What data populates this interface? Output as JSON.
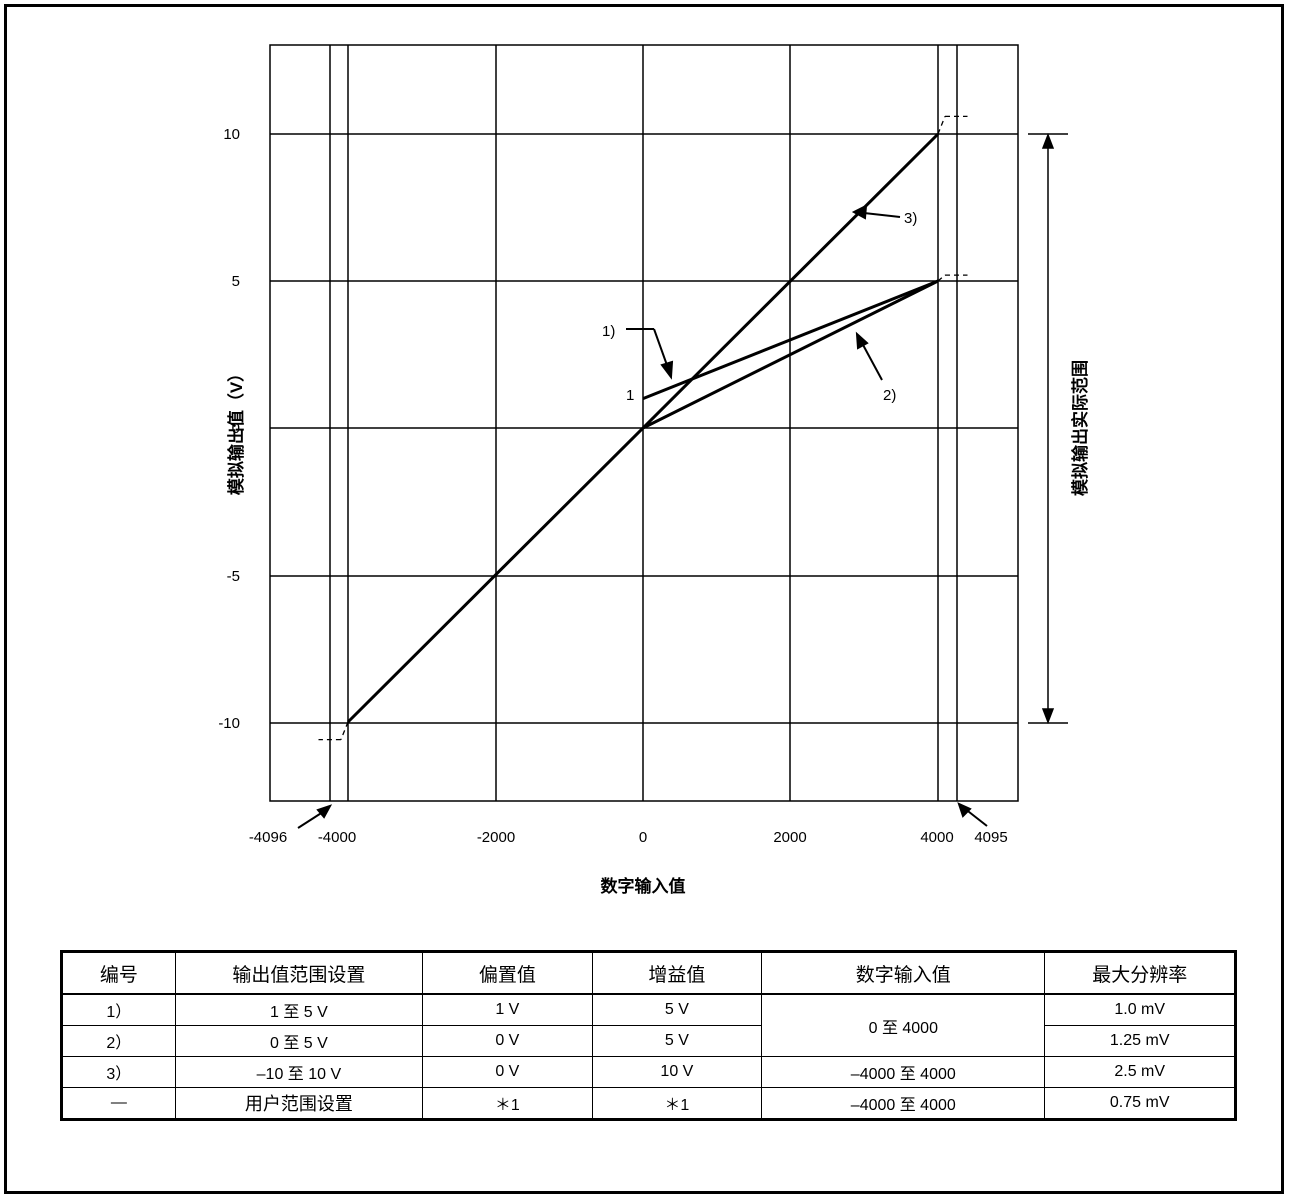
{
  "chart_data": {
    "type": "line",
    "xlabel": "数字输入值",
    "ylabel": "模拟输出值（V）",
    "right_label": "模拟输出实际范围",
    "xlim": [
      -4200,
      4200
    ],
    "ylim": [
      -12.6,
      12.6
    ],
    "x_ticks": [
      "-4096",
      "-4000",
      "-2000",
      "0",
      "2000",
      "4000",
      "4095"
    ],
    "y_ticks": [
      "10",
      "5",
      "0",
      "-5",
      "-10"
    ],
    "offset_marker_label": "1",
    "series": [
      {
        "name": "1)",
        "x": [
          0,
          4000
        ],
        "y": [
          1,
          5
        ],
        "dashed_ext": [
          [
            4000,
            5
          ],
          [
            4095,
            5.2
          ],
          [
            4400,
            5.2
          ]
        ]
      },
      {
        "name": "2)",
        "x": [
          0,
          4000
        ],
        "y": [
          0,
          5
        ],
        "dashed_ext": []
      },
      {
        "name": "3)",
        "x": [
          -4000,
          4000
        ],
        "y": [
          -10,
          10
        ],
        "dashed_ext_high": [
          [
            4000,
            10
          ],
          [
            4095,
            10.6
          ],
          [
            4400,
            10.6
          ]
        ],
        "dashed_ext_low": [
          [
            -4000,
            -10
          ],
          [
            -4096,
            -10.6
          ],
          [
            -4400,
            -10.6
          ]
        ]
      }
    ]
  },
  "table": {
    "headers": [
      "编号",
      "输出值范围设置",
      "偏置值",
      "增益值",
      "数字输入值",
      "最大分辨率"
    ],
    "rows": [
      {
        "no": "1）",
        "range": "1 至 5 V",
        "offset": "1 V",
        "gain": "5 V",
        "digital": "0 至 4000",
        "res": "1.0 mV"
      },
      {
        "no": "2）",
        "range": "0 至 5 V",
        "offset": "0 V",
        "gain": "5 V",
        "digital": "",
        "res": "1.25 mV"
      },
      {
        "no": "3）",
        "range": "–10 至 10 V",
        "offset": "0 V",
        "gain": "10 V",
        "digital": "–4000 至 4000",
        "res": "2.5 mV"
      },
      {
        "no": "—",
        "range": "用户范围设置",
        "offset": "＊1",
        "gain": "＊1",
        "digital": "–4000 至 4000",
        "res": "0.75 mV"
      }
    ]
  }
}
